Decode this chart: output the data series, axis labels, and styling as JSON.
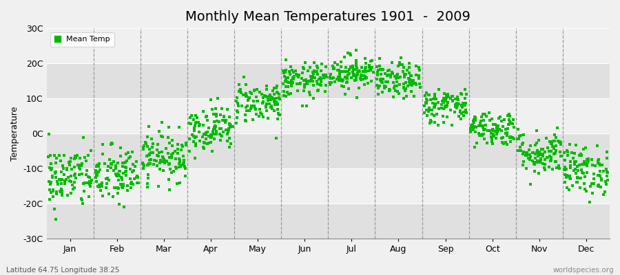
{
  "title": "Monthly Mean Temperatures 1901  -  2009",
  "ylabel": "Temperature",
  "subtitle": "Latitude 64.75 Longitude 38.25",
  "watermark": "worldspecies.org",
  "ylim": [
    -30,
    30
  ],
  "yticks": [
    -30,
    -20,
    -10,
    0,
    10,
    20,
    30
  ],
  "ytick_labels": [
    "-30C",
    "-20C",
    "-10C",
    "0C",
    "10C",
    "20C",
    "30C"
  ],
  "months": [
    "Jan",
    "Feb",
    "Mar",
    "Apr",
    "May",
    "Jun",
    "Jul",
    "Aug",
    "Sep",
    "Oct",
    "Nov",
    "Dec"
  ],
  "month_means": [
    -12.5,
    -12.0,
    -6.5,
    1.5,
    9.0,
    15.0,
    17.5,
    15.0,
    8.0,
    1.5,
    -5.5,
    -10.5
  ],
  "month_stds": [
    4.5,
    4.2,
    3.5,
    3.2,
    3.0,
    2.5,
    2.5,
    2.5,
    2.5,
    2.5,
    3.2,
    3.5
  ],
  "n_years": 109,
  "dot_color": "#00BB00",
  "dot_size": 5,
  "background_color": "#f0f0f0",
  "plot_bg_color": "#ebebeb",
  "band_color_dark": "#e0e0e0",
  "band_color_light": "#f0f0f0",
  "grid_color": "#999999",
  "title_fontsize": 14,
  "label_fontsize": 9,
  "tick_fontsize": 9
}
